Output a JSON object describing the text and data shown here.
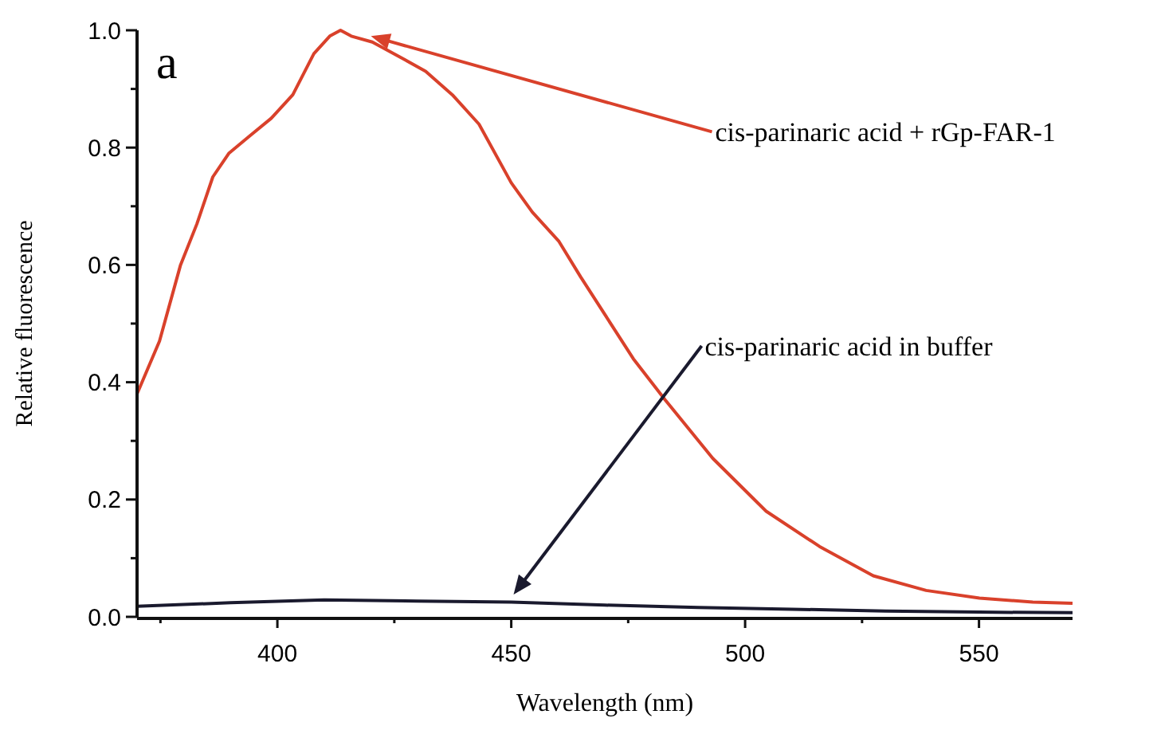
{
  "chart_data": {
    "type": "line",
    "xlabel": "Wavelength (nm)",
    "ylabel": "Relative fluorescence",
    "xlim": [
      370,
      570
    ],
    "ylim": [
      0,
      1
    ],
    "xticks": [
      {
        "value": 375,
        "label": null
      },
      400,
      {
        "value": 425,
        "label": null
      },
      450,
      {
        "value": 475,
        "label": null
      },
      500,
      {
        "value": 525,
        "label": null
      },
      550
    ],
    "yticks": [
      "0.0",
      {
        "value": 0.1,
        "label": null
      },
      0.2,
      {
        "value": 0.3,
        "label": null
      },
      0.4,
      {
        "value": 0.5,
        "label": null
      },
      0.6,
      {
        "value": 0.7,
        "label": null
      },
      0.8,
      {
        "value": 0.9,
        "label": null
      },
      "1.0"
    ],
    "grid": false,
    "marker": "none",
    "line_style": "solid",
    "series": [
      {
        "color": "#d9412b",
        "x": [
          370,
          374.8,
          379.3,
          382.8,
          386.2,
          389.6,
          394.1,
          398.7,
          403.3,
          407.8,
          411.2,
          413.5,
          415.8,
          420.3,
          427.2,
          431.7,
          437.4,
          443.1,
          450,
          454.5,
          460.2,
          464.8,
          476.1,
          482.9,
          493.1,
          504.5,
          515.9,
          527.4,
          538.7,
          550.1,
          561.5,
          570
        ],
        "values": [
          0.38,
          0.47,
          0.6,
          0.67,
          0.75,
          0.79,
          0.82,
          0.85,
          0.89,
          0.96,
          0.99,
          1.0,
          0.99,
          0.98,
          0.95,
          0.93,
          0.89,
          0.84,
          0.74,
          0.69,
          0.64,
          0.58,
          0.44,
          0.37,
          0.27,
          0.18,
          0.12,
          0.07,
          0.045,
          0.032,
          0.025,
          0.023
        ]
      },
      {
        "color": "#1a1a2e",
        "x": [
          370,
          390,
          410,
          430,
          450,
          470,
          490,
          510,
          530,
          550,
          570
        ],
        "values": [
          0.018,
          0.024,
          0.029,
          0.027,
          0.025,
          0.02,
          0.016,
          0.013,
          0.01,
          0.008,
          0.007
        ]
      }
    ],
    "annotations": [
      "a",
      {
        "text": "cis-parinaric acid + rGp-FAR-1",
        "x": 420,
        "y": 0.99
      },
      {
        "text": "cis-parinaric acid in buffer",
        "x": 450.5,
        "y": 0.038
      }
    ]
  }
}
